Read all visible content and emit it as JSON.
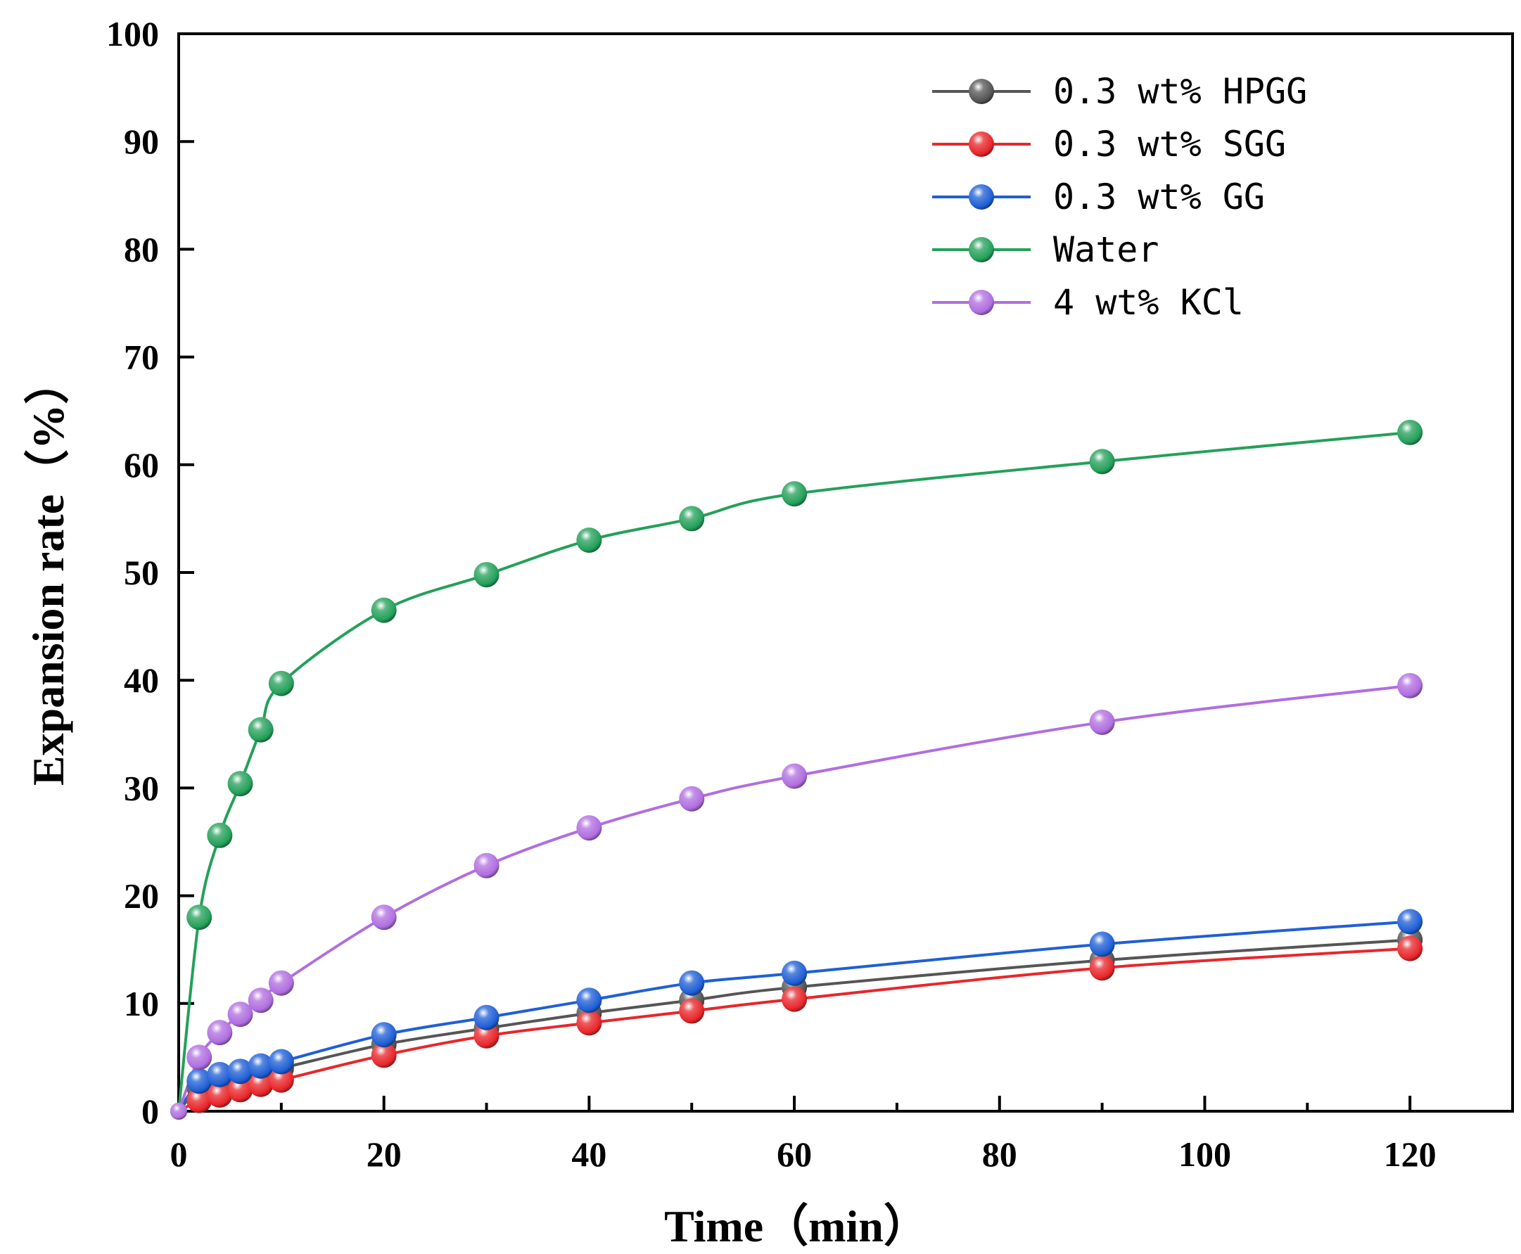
{
  "chart_data": {
    "type": "line",
    "title": "",
    "xlabel": "Time（min）",
    "ylabel": "Expansion rate（%）",
    "xlim": [
      0,
      130
    ],
    "ylim": [
      0,
      100
    ],
    "x_ticks": [
      0,
      20,
      40,
      60,
      80,
      100,
      120
    ],
    "y_ticks": [
      0,
      10,
      20,
      30,
      40,
      50,
      60,
      70,
      80,
      90,
      100
    ],
    "grid": false,
    "legend_position": "top-right",
    "x": [
      0,
      2,
      4,
      6,
      8,
      10,
      20,
      30,
      40,
      50,
      60,
      90,
      120
    ],
    "series": [
      {
        "name": "0.3 wt% HPGG",
        "color": "#555555",
        "values": [
          0,
          2.2,
          2.8,
          3.3,
          3.7,
          4.0,
          6.2,
          7.7,
          9.1,
          10.3,
          11.5,
          14.0,
          15.9
        ]
      },
      {
        "name": "0.3 wt% SGG",
        "color": "#e8262a",
        "values": [
          0,
          1.0,
          1.5,
          2.0,
          2.5,
          2.9,
          5.2,
          7.0,
          8.2,
          9.3,
          10.4,
          13.3,
          15.1
        ]
      },
      {
        "name": "0.3 wt% GG",
        "color": "#1f5fd6",
        "values": [
          0,
          2.8,
          3.4,
          3.7,
          4.2,
          4.6,
          7.1,
          8.7,
          10.3,
          11.9,
          12.8,
          15.5,
          17.6
        ]
      },
      {
        "name": "Water",
        "color": "#24a05a",
        "values": [
          0,
          18.0,
          25.6,
          30.4,
          35.4,
          39.7,
          46.5,
          49.8,
          53.0,
          55.0,
          57.3,
          60.3,
          63.0
        ]
      },
      {
        "name": "4 wt% KCl",
        "color": "#b06ee0",
        "values": [
          0,
          5.0,
          7.3,
          9.0,
          10.3,
          11.9,
          18.0,
          22.8,
          26.3,
          29.0,
          31.1,
          36.1,
          39.5
        ]
      }
    ]
  }
}
